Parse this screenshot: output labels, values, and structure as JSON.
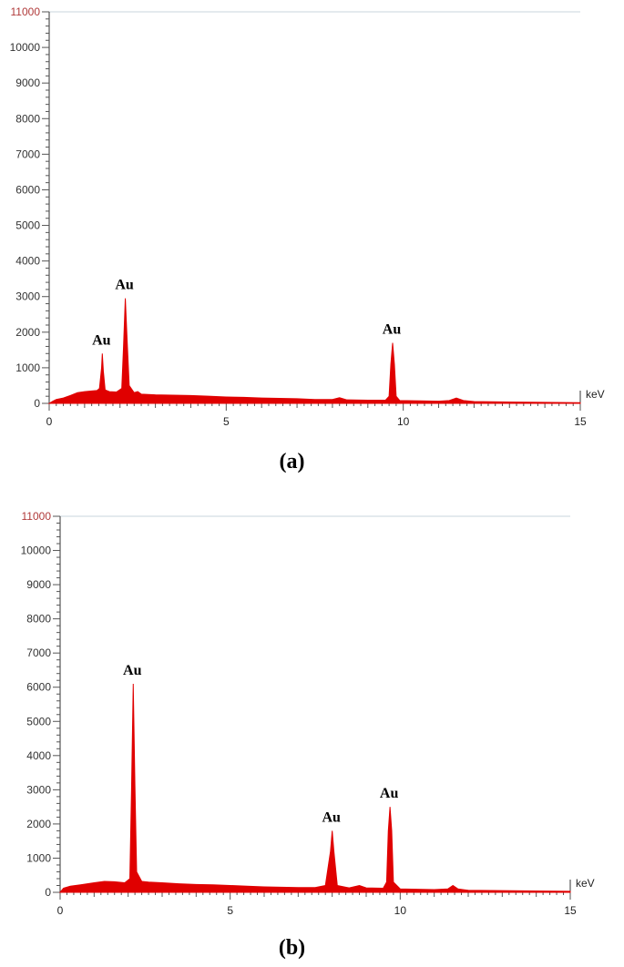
{
  "chart_data": [
    {
      "type": "area",
      "panel_label": "(a)",
      "xunit": "keV",
      "xlim": [
        0,
        15
      ],
      "ylim": [
        0,
        11000
      ],
      "xticks": [
        "0",
        "5",
        "10",
        "15"
      ],
      "yticks": [
        "0",
        "1000",
        "2000",
        "3000",
        "4000",
        "5000",
        "6000",
        "7000",
        "8000",
        "9000",
        "10000",
        "11000"
      ],
      "color": "#e00000",
      "peaks": [
        {
          "label": "Au",
          "x": 1.5,
          "y": 1400
        },
        {
          "label": "Au",
          "x": 2.15,
          "y": 2950
        },
        {
          "label": "Au",
          "x": 9.7,
          "y": 1700
        }
      ],
      "spectrum": [
        [
          0,
          0
        ],
        [
          0.1,
          60
        ],
        [
          0.2,
          110
        ],
        [
          0.4,
          150
        ],
        [
          0.6,
          220
        ],
        [
          0.8,
          300
        ],
        [
          1.0,
          330
        ],
        [
          1.2,
          350
        ],
        [
          1.35,
          360
        ],
        [
          1.42,
          420
        ],
        [
          1.48,
          1000
        ],
        [
          1.5,
          1400
        ],
        [
          1.53,
          900
        ],
        [
          1.58,
          380
        ],
        [
          1.7,
          330
        ],
        [
          1.9,
          320
        ],
        [
          2.05,
          420
        ],
        [
          2.1,
          1600
        ],
        [
          2.15,
          2950
        ],
        [
          2.2,
          1800
        ],
        [
          2.26,
          500
        ],
        [
          2.4,
          300
        ],
        [
          2.5,
          330
        ],
        [
          2.6,
          260
        ],
        [
          3.0,
          240
        ],
        [
          3.5,
          230
        ],
        [
          4.0,
          220
        ],
        [
          4.5,
          200
        ],
        [
          5.0,
          180
        ],
        [
          5.5,
          170
        ],
        [
          6.0,
          150
        ],
        [
          6.5,
          140
        ],
        [
          7.0,
          130
        ],
        [
          7.5,
          110
        ],
        [
          8.0,
          110
        ],
        [
          8.2,
          160
        ],
        [
          8.4,
          100
        ],
        [
          9.0,
          90
        ],
        [
          9.5,
          90
        ],
        [
          9.6,
          200
        ],
        [
          9.65,
          1100
        ],
        [
          9.7,
          1700
        ],
        [
          9.75,
          1100
        ],
        [
          9.8,
          200
        ],
        [
          9.9,
          80
        ],
        [
          10.5,
          70
        ],
        [
          11.0,
          60
        ],
        [
          11.3,
          80
        ],
        [
          11.5,
          150
        ],
        [
          11.7,
          80
        ],
        [
          12.0,
          50
        ],
        [
          13.0,
          40
        ],
        [
          14.0,
          30
        ],
        [
          15.0,
          20
        ]
      ]
    },
    {
      "type": "area",
      "panel_label": "(b)",
      "xunit": "keV",
      "xlim": [
        0,
        15
      ],
      "ylim": [
        0,
        11000
      ],
      "xticks": [
        "0",
        "5",
        "10",
        "15"
      ],
      "yticks": [
        "0",
        "1000",
        "2000",
        "3000",
        "4000",
        "5000",
        "6000",
        "7000",
        "8000",
        "9000",
        "10000",
        "11000"
      ],
      "color": "#e00000",
      "peaks": [
        {
          "label": "Au",
          "x": 2.15,
          "y": 6100
        },
        {
          "label": "Au",
          "x": 8.0,
          "y": 1800
        },
        {
          "label": "Au",
          "x": 9.7,
          "y": 2500
        }
      ],
      "spectrum": [
        [
          0,
          0
        ],
        [
          0.1,
          120
        ],
        [
          0.3,
          180
        ],
        [
          0.6,
          220
        ],
        [
          1.0,
          280
        ],
        [
          1.3,
          320
        ],
        [
          1.6,
          310
        ],
        [
          1.9,
          280
        ],
        [
          2.05,
          400
        ],
        [
          2.1,
          3000
        ],
        [
          2.15,
          6100
        ],
        [
          2.2,
          3100
        ],
        [
          2.25,
          600
        ],
        [
          2.4,
          320
        ],
        [
          2.6,
          300
        ],
        [
          3.0,
          280
        ],
        [
          3.5,
          250
        ],
        [
          4.0,
          230
        ],
        [
          4.5,
          220
        ],
        [
          5.0,
          200
        ],
        [
          5.5,
          180
        ],
        [
          6.0,
          160
        ],
        [
          6.5,
          150
        ],
        [
          7.0,
          140
        ],
        [
          7.5,
          140
        ],
        [
          7.8,
          200
        ],
        [
          7.95,
          1200
        ],
        [
          8.0,
          1800
        ],
        [
          8.05,
          1200
        ],
        [
          8.15,
          200
        ],
        [
          8.5,
          130
        ],
        [
          8.8,
          200
        ],
        [
          9.0,
          130
        ],
        [
          9.5,
          120
        ],
        [
          9.6,
          300
        ],
        [
          9.65,
          1800
        ],
        [
          9.7,
          2500
        ],
        [
          9.75,
          1800
        ],
        [
          9.8,
          300
        ],
        [
          10.0,
          100
        ],
        [
          10.5,
          90
        ],
        [
          11.0,
          80
        ],
        [
          11.4,
          100
        ],
        [
          11.55,
          200
        ],
        [
          11.7,
          100
        ],
        [
          12.0,
          60
        ],
        [
          13.0,
          50
        ],
        [
          14.0,
          40
        ],
        [
          15.0,
          30
        ]
      ]
    }
  ]
}
